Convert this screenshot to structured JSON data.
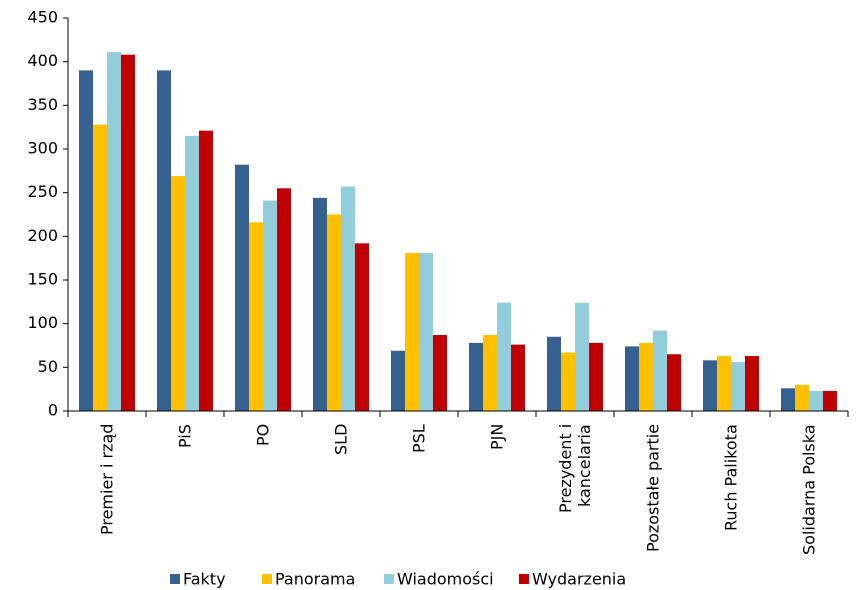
{
  "chart_data": {
    "type": "bar",
    "categories": [
      "Premier i rząd",
      "PiS",
      "PO",
      "SLD",
      "PSL",
      "PJN",
      "Prezydent i\nkancelaria",
      "Pozostałe partie",
      "Ruch Palikota",
      "Solidarna Polska"
    ],
    "series": [
      {
        "name": "Fakty",
        "color": "#36608f",
        "values": [
          390,
          390,
          282,
          244,
          69,
          78,
          85,
          74,
          58,
          26
        ]
      },
      {
        "name": "Panorama",
        "color": "#ffc000",
        "values": [
          328,
          269,
          216,
          225,
          181,
          87,
          67,
          78,
          63,
          30
        ]
      },
      {
        "name": "Wiadomości",
        "color": "#92cddc",
        "values": [
          411,
          315,
          241,
          257,
          181,
          124,
          124,
          92,
          56,
          23
        ]
      },
      {
        "name": "Wydarzenia",
        "color": "#c00000",
        "values": [
          408,
          321,
          255,
          192,
          87,
          76,
          78,
          65,
          63,
          23
        ]
      }
    ],
    "ylim": [
      0,
      450
    ],
    "yticks": [
      0,
      50,
      100,
      150,
      200,
      250,
      300,
      350,
      400,
      450
    ],
    "grid": false,
    "legend": "bottom"
  }
}
